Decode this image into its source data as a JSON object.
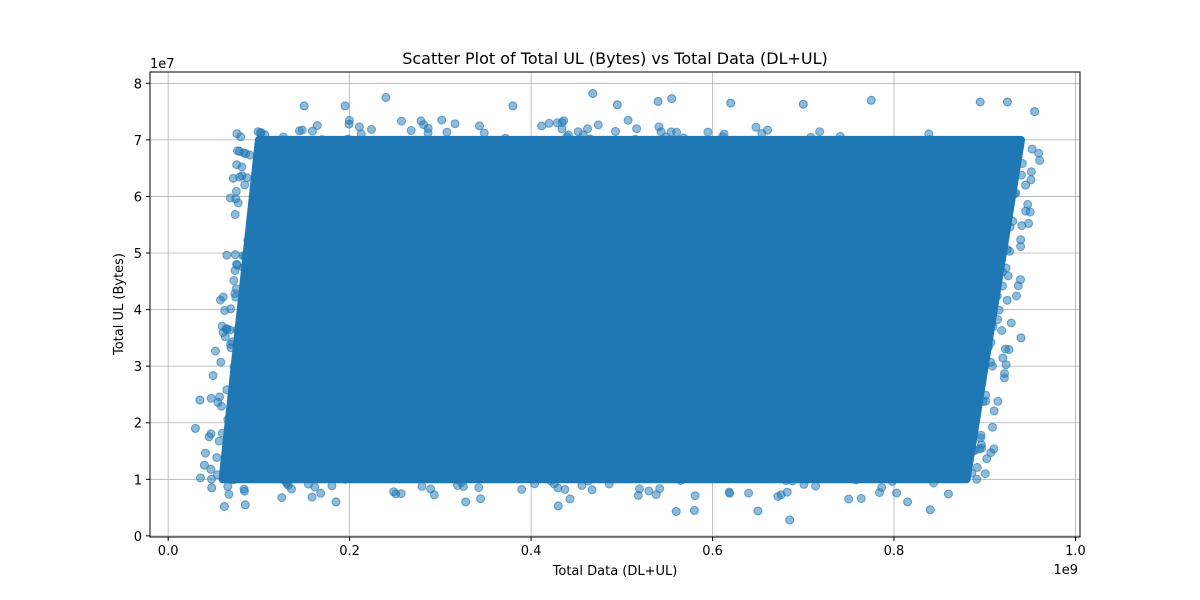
{
  "chart_data": {
    "type": "scatter",
    "title": "Scatter Plot of Total UL (Bytes) vs Total Data (DL+UL)",
    "xlabel": "Total Data (DL+UL)",
    "ylabel": "Total UL (Bytes)",
    "x_offset_label": "1e9",
    "y_offset_label": "1e7",
    "xlim": [
      -20000000,
      1005000000
    ],
    "ylim": [
      -200000,
      82000000
    ],
    "xticks": [
      0.0,
      0.2,
      0.4,
      0.6,
      0.8,
      1.0
    ],
    "xtick_labels": [
      "0.0",
      "0.2",
      "0.4",
      "0.6",
      "0.8",
      "1.0"
    ],
    "yticks": [
      0,
      1,
      2,
      3,
      4,
      5,
      6,
      7,
      8
    ],
    "ytick_labels": [
      "0",
      "1",
      "2",
      "3",
      "4",
      "5",
      "6",
      "7",
      "8"
    ],
    "grid": true,
    "color": "#1f77b4",
    "alpha": 0.5,
    "dense_region": {
      "description_of_shape": "parallelogram",
      "corners": [
        {
          "x": 60000000,
          "y": 10000000
        },
        {
          "x": 880000000,
          "y": 10000000
        },
        {
          "x": 940000000,
          "y": 70000000
        },
        {
          "x": 100000000,
          "y": 70000000
        }
      ]
    },
    "points": [
      {
        "x": 30000000,
        "y": 19000000
      },
      {
        "x": 35000000,
        "y": 24000000
      },
      {
        "x": 40000000,
        "y": 12500000
      },
      {
        "x": 48000000,
        "y": 8500000
      },
      {
        "x": 62000000,
        "y": 5200000
      },
      {
        "x": 85000000,
        "y": 5500000
      },
      {
        "x": 185000000,
        "y": 6000000
      },
      {
        "x": 240000000,
        "y": 77500000
      },
      {
        "x": 328000000,
        "y": 6000000
      },
      {
        "x": 430000000,
        "y": 5300000
      },
      {
        "x": 468000000,
        "y": 78200000
      },
      {
        "x": 495000000,
        "y": 76200000
      },
      {
        "x": 540000000,
        "y": 76800000
      },
      {
        "x": 555000000,
        "y": 77300000
      },
      {
        "x": 560000000,
        "y": 4300000
      },
      {
        "x": 580000000,
        "y": 4500000
      },
      {
        "x": 650000000,
        "y": 4400000
      },
      {
        "x": 685000000,
        "y": 2800000
      },
      {
        "x": 700000000,
        "y": 76300000
      },
      {
        "x": 775000000,
        "y": 77000000
      },
      {
        "x": 815000000,
        "y": 6000000
      },
      {
        "x": 840000000,
        "y": 4600000
      },
      {
        "x": 860000000,
        "y": 7400000
      },
      {
        "x": 895000000,
        "y": 76700000
      },
      {
        "x": 925000000,
        "y": 76700000
      },
      {
        "x": 955000000,
        "y": 75000000
      },
      {
        "x": 940000000,
        "y": 35000000
      },
      {
        "x": 945000000,
        "y": 62000000
      },
      {
        "x": 150000000,
        "y": 76000000
      },
      {
        "x": 195000000,
        "y": 76000000
      },
      {
        "x": 380000000,
        "y": 76000000
      },
      {
        "x": 620000000,
        "y": 76500000
      }
    ]
  }
}
